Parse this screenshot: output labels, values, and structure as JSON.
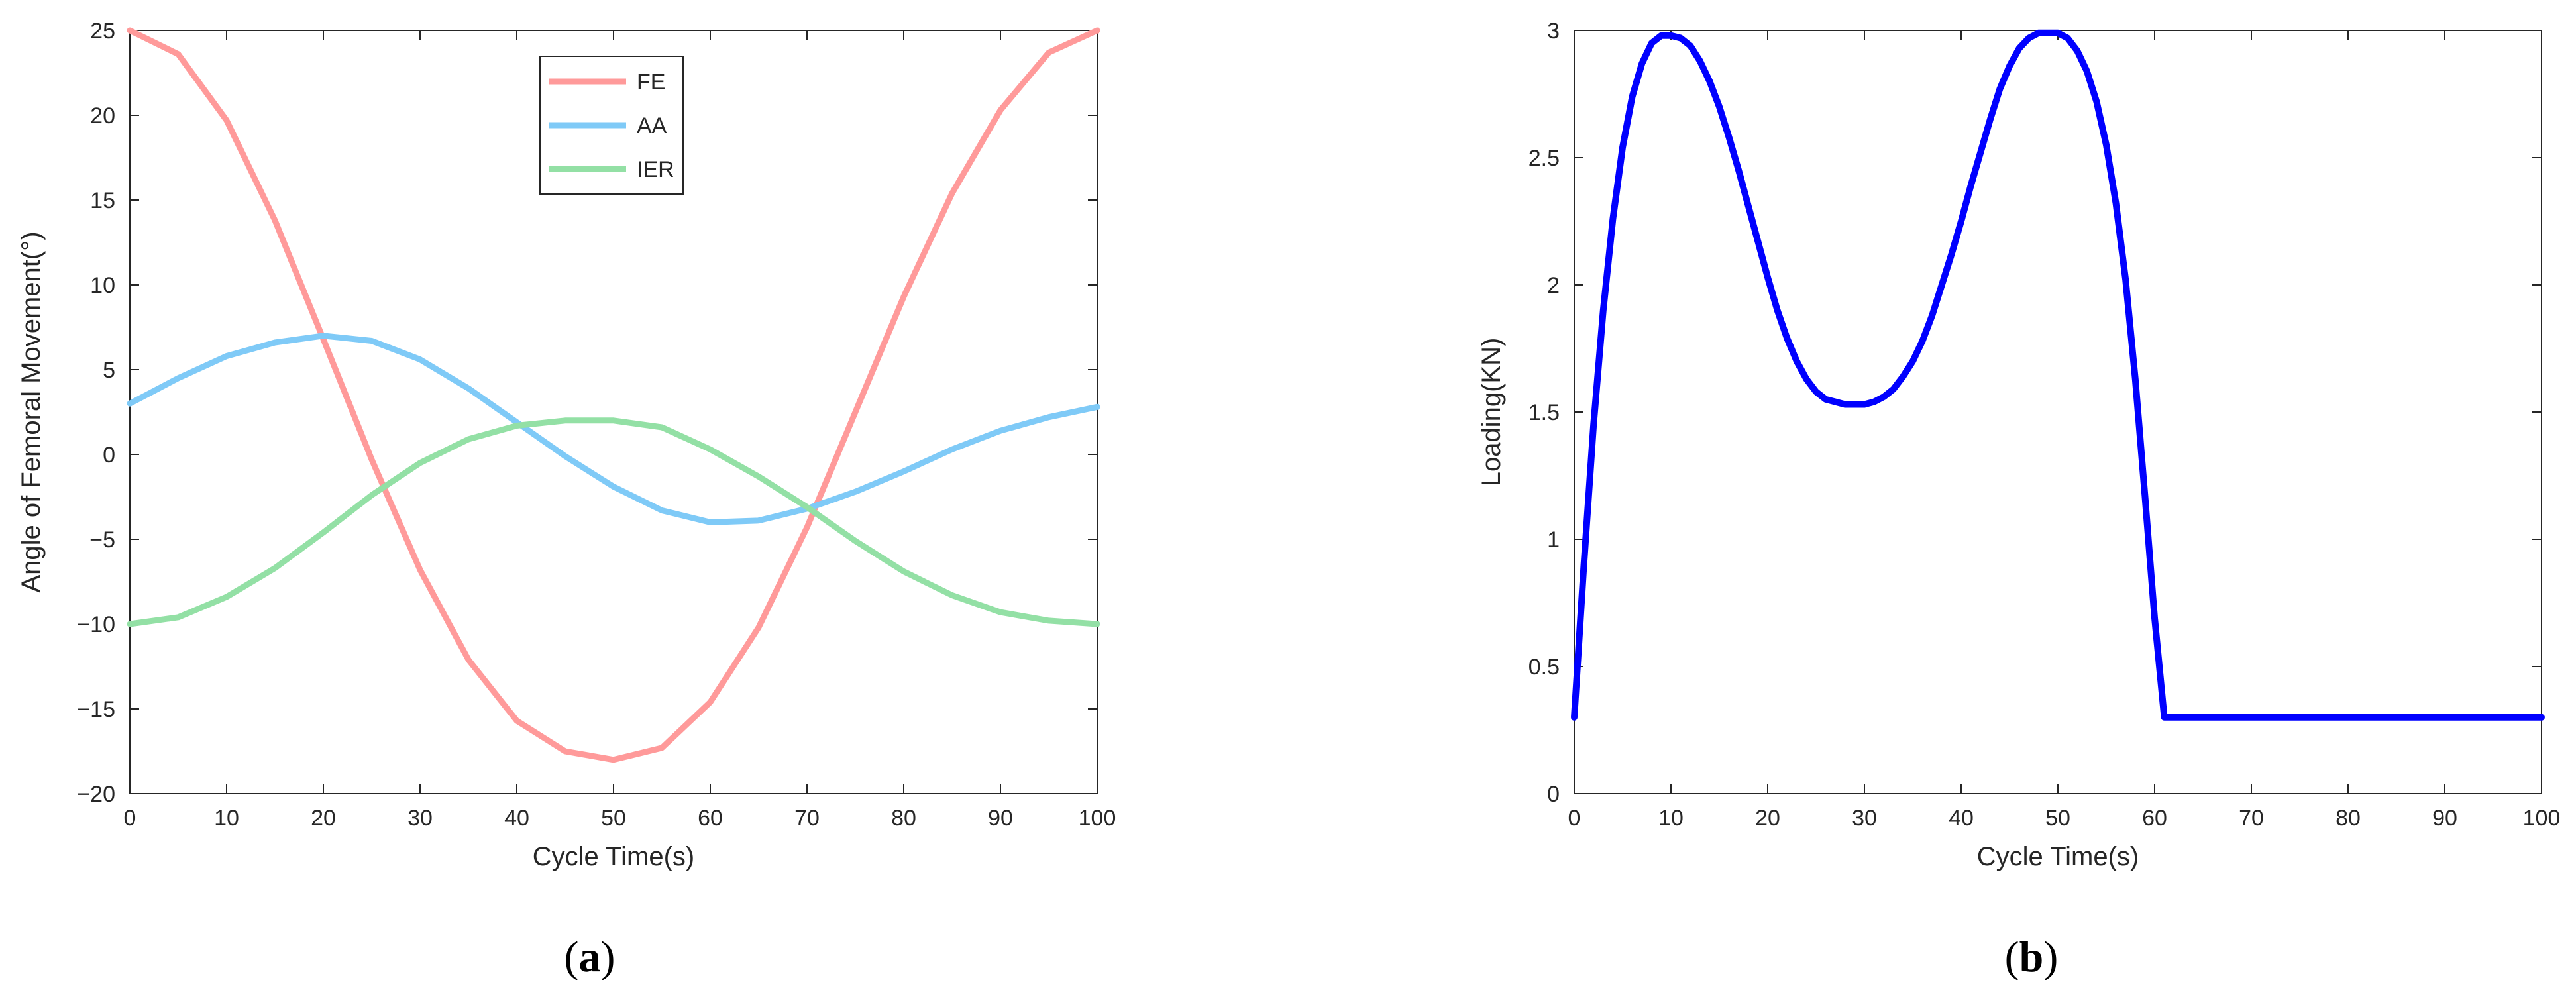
{
  "chart_data": [
    {
      "type": "line",
      "panel_label": "a",
      "xlabel": "Cycle Time(s)",
      "ylabel": "Angle of Femoral Movement(°)",
      "xlim": [
        0,
        100
      ],
      "ylim": [
        -20,
        25
      ],
      "xticks": [
        0,
        10,
        20,
        30,
        40,
        50,
        60,
        70,
        80,
        90,
        100
      ],
      "xtick_labels": [
        "0",
        "10",
        "20",
        "30",
        "40",
        "50",
        "60",
        "70",
        "80",
        "90",
        "100"
      ],
      "yticks": [
        -20,
        -15,
        -10,
        -5,
        0,
        5,
        10,
        15,
        20,
        25
      ],
      "ytick_labels": [
        "−20",
        "−15",
        "−10",
        "−5",
        "0",
        "5",
        "10",
        "15",
        "20",
        "25"
      ],
      "grid": false,
      "legend": "top-center",
      "series": [
        {
          "name": "FE",
          "color": "#ff9a9a",
          "x": [
            0,
            5,
            10,
            15,
            20,
            25,
            30,
            35,
            40,
            45,
            50,
            55,
            60,
            65,
            70,
            75,
            80,
            85,
            90,
            95,
            100
          ],
          "y": [
            25,
            23.6,
            19.7,
            13.8,
            6.8,
            -0.3,
            -6.8,
            -12.1,
            -15.7,
            -17.5,
            -18,
            -17.3,
            -14.6,
            -10.2,
            -4.3,
            2.5,
            9.3,
            15.4,
            20.3,
            23.7,
            25
          ]
        },
        {
          "name": "AA",
          "color": "#7fcaf7",
          "x": [
            0,
            5,
            10,
            15,
            20,
            25,
            30,
            35,
            40,
            45,
            50,
            55,
            60,
            65,
            70,
            75,
            80,
            85,
            90,
            95,
            100
          ],
          "y": [
            3,
            4.5,
            5.8,
            6.6,
            7,
            6.7,
            5.6,
            3.9,
            1.9,
            -0.1,
            -1.9,
            -3.3,
            -4,
            -3.9,
            -3.2,
            -2.2,
            -1,
            0.3,
            1.4,
            2.2,
            2.8
          ]
        },
        {
          "name": "IER",
          "color": "#93e0a5",
          "x": [
            0,
            5,
            10,
            15,
            20,
            25,
            30,
            35,
            40,
            45,
            50,
            55,
            60,
            65,
            70,
            75,
            80,
            85,
            90,
            95,
            100
          ],
          "y": [
            -10,
            -9.6,
            -8.4,
            -6.7,
            -4.6,
            -2.4,
            -0.5,
            0.9,
            1.7,
            2,
            2,
            1.6,
            0.3,
            -1.3,
            -3.1,
            -5.1,
            -6.9,
            -8.3,
            -9.3,
            -9.8,
            -10
          ]
        }
      ]
    },
    {
      "type": "line",
      "panel_label": "b",
      "xlabel": "Cycle Time(s)",
      "ylabel": "Loading(KN)",
      "xlim": [
        0,
        100
      ],
      "ylim": [
        0,
        3
      ],
      "xticks": [
        0,
        10,
        20,
        30,
        40,
        50,
        60,
        70,
        80,
        90,
        100
      ],
      "xtick_labels": [
        "0",
        "10",
        "20",
        "30",
        "40",
        "50",
        "60",
        "70",
        "80",
        "90",
        "100"
      ],
      "yticks": [
        0,
        0.5,
        1,
        1.5,
        2,
        2.5,
        3
      ],
      "ytick_labels": [
        "0",
        "0.5",
        "1",
        "1.5",
        "2",
        "2.5",
        "3"
      ],
      "grid": false,
      "series": [
        {
          "color": "#0000ff",
          "x": [
            0,
            1,
            2,
            3,
            4,
            5,
            6,
            7,
            8,
            9,
            10,
            11,
            12,
            13,
            14,
            15,
            16,
            17,
            18,
            19,
            20,
            21,
            22,
            23,
            24,
            25,
            26,
            27,
            28,
            29,
            30,
            31,
            32,
            33,
            34,
            35,
            36,
            37,
            38,
            39,
            40,
            41,
            42,
            43,
            44,
            45,
            46,
            47,
            48,
            49,
            50,
            51,
            52,
            53,
            54,
            55,
            56,
            57,
            58,
            59,
            60,
            61,
            62,
            70,
            80,
            90,
            100
          ],
          "y": [
            0.3,
            0.9,
            1.45,
            1.9,
            2.26,
            2.54,
            2.74,
            2.87,
            2.95,
            2.98,
            2.98,
            2.97,
            2.94,
            2.88,
            2.8,
            2.7,
            2.58,
            2.45,
            2.31,
            2.17,
            2.03,
            1.9,
            1.79,
            1.7,
            1.63,
            1.58,
            1.55,
            1.54,
            1.53,
            1.53,
            1.53,
            1.54,
            1.56,
            1.59,
            1.64,
            1.7,
            1.78,
            1.88,
            2.0,
            2.12,
            2.25,
            2.39,
            2.52,
            2.65,
            2.77,
            2.86,
            2.93,
            2.97,
            2.99,
            2.99,
            2.99,
            2.97,
            2.92,
            2.84,
            2.72,
            2.55,
            2.32,
            2.02,
            1.63,
            1.17,
            0.69,
            0.3,
            0.3,
            0.3,
            0.3,
            0.3,
            0.3
          ]
        }
      ]
    }
  ]
}
